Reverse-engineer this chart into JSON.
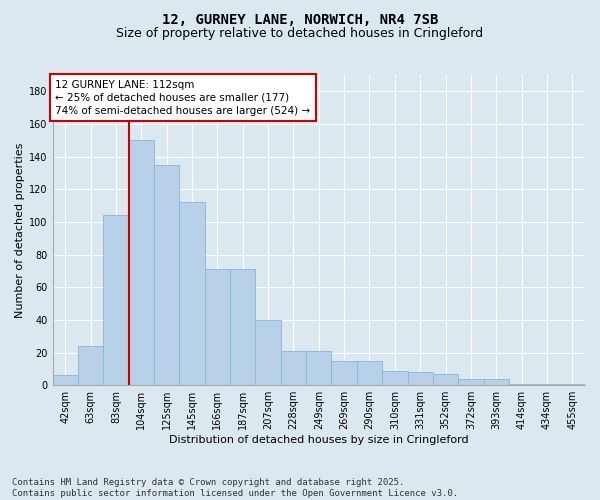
{
  "title_line1": "12, GURNEY LANE, NORWICH, NR4 7SB",
  "title_line2": "Size of property relative to detached houses in Cringleford",
  "xlabel": "Distribution of detached houses by size in Cringleford",
  "ylabel": "Number of detached properties",
  "categories": [
    "42sqm",
    "63sqm",
    "83sqm",
    "104sqm",
    "125sqm",
    "145sqm",
    "166sqm",
    "187sqm",
    "207sqm",
    "228sqm",
    "249sqm",
    "269sqm",
    "290sqm",
    "310sqm",
    "331sqm",
    "352sqm",
    "372sqm",
    "393sqm",
    "414sqm",
    "434sqm",
    "455sqm"
  ],
  "values": [
    6,
    24,
    104,
    150,
    135,
    112,
    71,
    71,
    40,
    21,
    21,
    15,
    15,
    9,
    8,
    7,
    4,
    4,
    1,
    1,
    1
  ],
  "bar_color": "#b8d0e8",
  "bar_edge_color": "#8ab4d8",
  "vline_color": "#cc0000",
  "vline_position": 3.5,
  "annotation_text": "12 GURNEY LANE: 112sqm\n← 25% of detached houses are smaller (177)\n74% of semi-detached houses are larger (524) →",
  "annotation_box_facecolor": "#ffffff",
  "annotation_box_edgecolor": "#cc0000",
  "ylim": [
    0,
    190
  ],
  "yticks": [
    0,
    20,
    40,
    60,
    80,
    100,
    120,
    140,
    160,
    180
  ],
  "background_color": "#dce8f0",
  "plot_bg_color": "#dce8f0",
  "grid_color": "#ffffff",
  "footer_line1": "Contains HM Land Registry data © Crown copyright and database right 2025.",
  "footer_line2": "Contains public sector information licensed under the Open Government Licence v3.0.",
  "title_fontsize": 10,
  "subtitle_fontsize": 9,
  "axis_label_fontsize": 8,
  "tick_fontsize": 7,
  "annotation_fontsize": 7.5,
  "footer_fontsize": 6.5
}
